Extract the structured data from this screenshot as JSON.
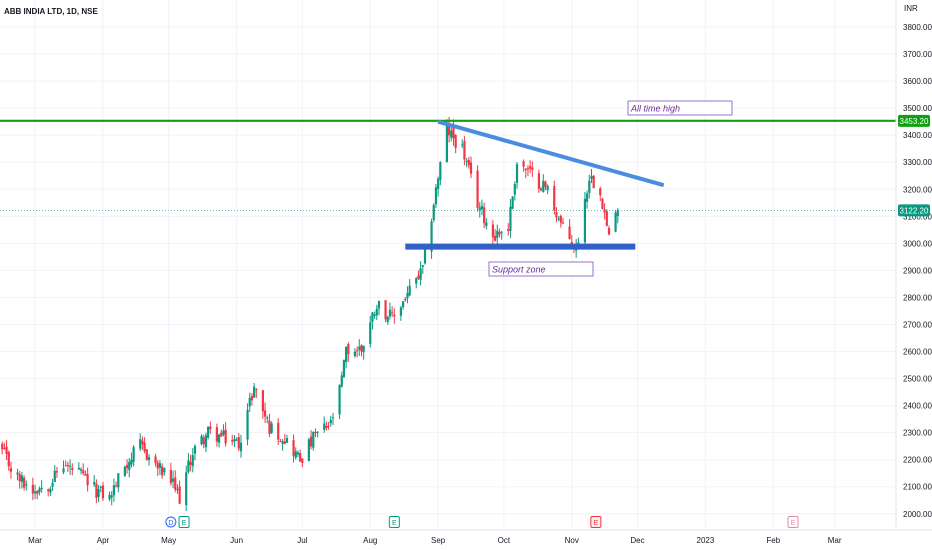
{
  "header": {
    "symbol_title": "ABB INDIA LTD, 1D, NSE"
  },
  "price_axis": {
    "currency": "INR"
  },
  "colors": {
    "up": "#089981",
    "down": "#f23645",
    "trendline": "#4a8de0",
    "support": "#3060c8",
    "ath_line": "#11a011",
    "annotation_border": "#7a52c7",
    "annotation_text": "#6a2a9a",
    "current_price": "#089981"
  },
  "events": {
    "dividend_label": "D",
    "earnings_label": "E"
  },
  "chart_data": {
    "type": "candlestick",
    "title": "ABB INDIA LTD, 1D, NSE",
    "ylabel": "INR",
    "scale": "linear",
    "ylim": [
      1940,
      3900
    ],
    "x_range": [
      "2022-02-13",
      "2023-03-29"
    ],
    "x_tick_labels": [
      "Mar",
      "Apr",
      "May",
      "Jun",
      "Jul",
      "Aug",
      "Sep",
      "Oct",
      "Nov",
      "Dec",
      "2023",
      "Feb",
      "Mar"
    ],
    "y_ticks": [
      2000,
      2100,
      2200,
      2300,
      2400,
      2500,
      2600,
      2700,
      2800,
      2900,
      3000,
      3100,
      3200,
      3300,
      3400,
      3500,
      3600,
      3700,
      3800
    ],
    "y_tick_labels": [
      "2000.00",
      "2100.00",
      "2200.00",
      "2300.00",
      "2400.00",
      "2500.00",
      "2600.00",
      "2700.00",
      "2800.00",
      "2900.00",
      "3000.00",
      "3100.00",
      "3200.00",
      "3300.00",
      "3400.00",
      "3500.00",
      "3600.00",
      "3700.00",
      "3800.00"
    ],
    "grid": false,
    "price_path": [
      [
        "2022-02-14",
        2230
      ],
      [
        "2022-02-20",
        2140
      ],
      [
        "2022-02-28",
        2090
      ],
      [
        "2022-03-07",
        2110
      ],
      [
        "2022-03-14",
        2180
      ],
      [
        "2022-03-21",
        2150
      ],
      [
        "2022-03-28",
        2090
      ],
      [
        "2022-04-04",
        2060
      ],
      [
        "2022-04-11",
        2180
      ],
      [
        "2022-04-18",
        2250
      ],
      [
        "2022-04-25",
        2180
      ],
      [
        "2022-05-02",
        2120
      ],
      [
        "2022-05-06",
        2060
      ],
      [
        "2022-05-12",
        2230
      ],
      [
        "2022-05-19",
        2300
      ],
      [
        "2022-05-26",
        2280
      ],
      [
        "2022-06-02",
        2260
      ],
      [
        "2022-06-09",
        2470
      ],
      [
        "2022-06-16",
        2320
      ],
      [
        "2022-06-23",
        2280
      ],
      [
        "2022-06-30",
        2200
      ],
      [
        "2022-07-07",
        2290
      ],
      [
        "2022-07-14",
        2330
      ],
      [
        "2022-07-18",
        2450
      ],
      [
        "2022-07-21",
        2600
      ],
      [
        "2022-07-28",
        2610
      ],
      [
        "2022-08-04",
        2780
      ],
      [
        "2022-08-11",
        2720
      ],
      [
        "2022-08-17",
        2800
      ],
      [
        "2022-08-25",
        2900
      ],
      [
        "2022-08-31",
        3200
      ],
      [
        "2022-09-05",
        3420
      ],
      [
        "2022-09-12",
        3350
      ],
      [
        "2022-09-19",
        3150
      ],
      [
        "2022-09-26",
        3030
      ],
      [
        "2022-10-03",
        3060
      ],
      [
        "2022-10-07",
        3300
      ],
      [
        "2022-10-14",
        3250
      ],
      [
        "2022-10-21",
        3200
      ],
      [
        "2022-10-28",
        3050
      ],
      [
        "2022-11-03",
        2980
      ],
      [
        "2022-11-09",
        3250
      ],
      [
        "2022-11-14",
        3200
      ],
      [
        "2022-11-18",
        3020
      ],
      [
        "2022-11-22",
        3122.2
      ]
    ],
    "last_price": 3122.2,
    "last_price_label": "3122.20",
    "all_time_high": 3453.2,
    "all_time_high_label": "3453.20",
    "annotations": [
      {
        "text": "All time high"
      },
      {
        "text": "Support zone"
      }
    ],
    "drawings": {
      "resistance_trendline": {
        "from": [
          "2022-09-01",
          3450
        ],
        "to": [
          "2022-12-13",
          3215
        ]
      },
      "support_zone": {
        "from": [
          "2022-08-17",
          2988
        ],
        "to": [
          "2022-11-30",
          2988
        ]
      },
      "ath_line": {
        "from": [
          "2022-02-13",
          3453.2
        ],
        "to": [
          "2023-03-29",
          3453.2
        ]
      }
    },
    "event_markers": [
      {
        "date": "2022-05-02",
        "kind": "dividend",
        "label": "D"
      },
      {
        "date": "2022-05-08",
        "kind": "earnings",
        "label": "E"
      },
      {
        "date": "2022-08-12",
        "kind": "earnings",
        "label": "E"
      },
      {
        "date": "2022-11-12",
        "kind": "earnings",
        "label": "E",
        "highlight": true
      },
      {
        "date": "2023-02-10",
        "kind": "earnings",
        "label": "E",
        "future": true
      }
    ]
  }
}
